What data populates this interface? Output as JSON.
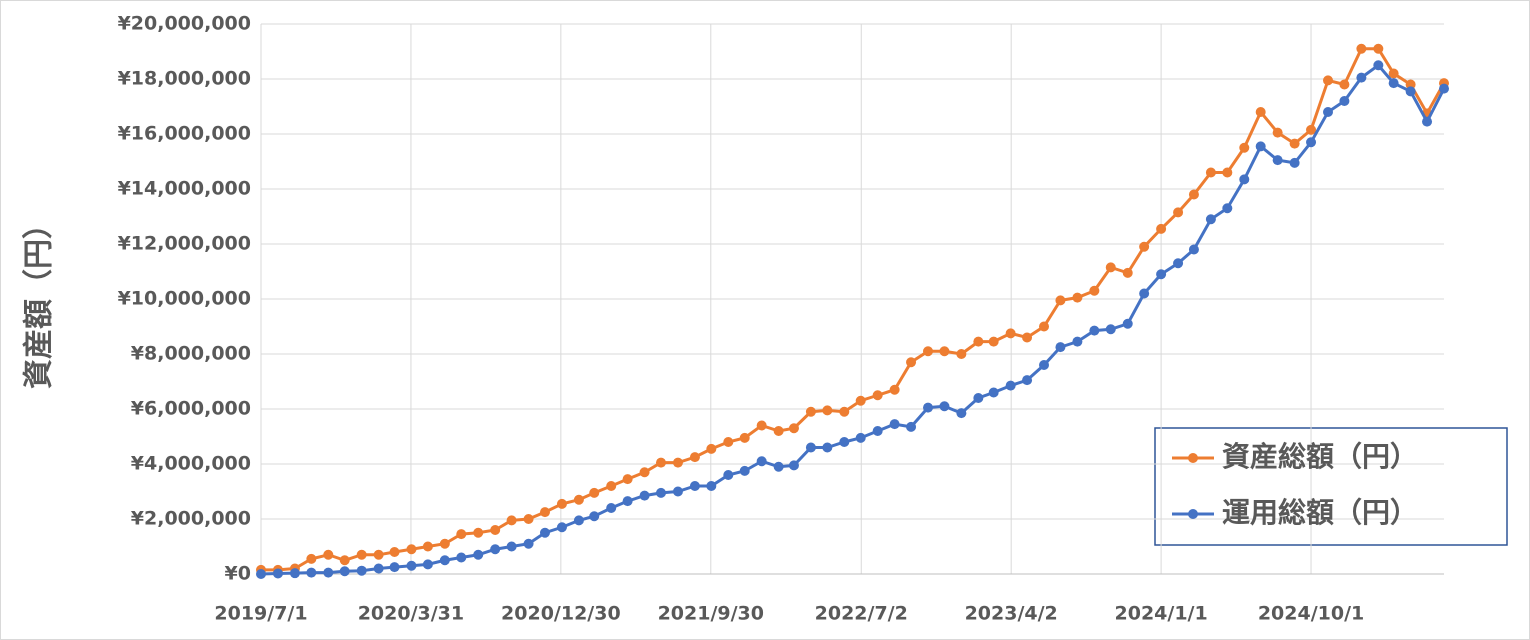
{
  "chart_data": {
    "type": "line",
    "y_label": "資産額（円）",
    "x": [
      "2019/7/1",
      "2019/8/1",
      "2019/9/1",
      "2019/10/1",
      "2019/11/1",
      "2019/12/1",
      "2020/1/1",
      "2020/2/1",
      "2020/3/1",
      "2020/4/1",
      "2020/5/1",
      "2020/6/1",
      "2020/7/1",
      "2020/8/1",
      "2020/9/1",
      "2020/10/1",
      "2020/11/1",
      "2020/12/1",
      "2021/1/1",
      "2021/2/1",
      "2021/3/1",
      "2021/4/1",
      "2021/5/1",
      "2021/6/1",
      "2021/7/1",
      "2021/8/1",
      "2021/9/1",
      "2021/10/1",
      "2021/11/1",
      "2021/12/1",
      "2022/1/1",
      "2022/2/1",
      "2022/3/1",
      "2022/4/1",
      "2022/5/1",
      "2022/6/1",
      "2022/7/1",
      "2022/8/1",
      "2022/9/1",
      "2022/10/1",
      "2022/11/1",
      "2022/12/1",
      "2023/1/1",
      "2023/2/1",
      "2023/3/1",
      "2023/4/1",
      "2023/5/1",
      "2023/6/1",
      "2023/7/1",
      "2023/8/1",
      "2023/9/1",
      "2023/10/1",
      "2023/11/1",
      "2023/12/1",
      "2024/1/1",
      "2024/2/1",
      "2024/3/1",
      "2024/4/1",
      "2024/5/1",
      "2024/6/1",
      "2024/7/1",
      "2024/8/1",
      "2024/9/1",
      "2024/10/1",
      "2024/11/1",
      "2024/12/1",
      "2025/1/1",
      "2025/2/1",
      "2025/3/1",
      "2025/4/1",
      "2025/5/1",
      "2025/6/1"
    ],
    "series": [
      {
        "name": "資産総額（円）",
        "color": "#ed7d31",
        "values": [
          150000,
          150000,
          200000,
          550000,
          700000,
          500000,
          700000,
          700000,
          800000,
          900000,
          1000000,
          1100000,
          1450000,
          1500000,
          1600000,
          1950000,
          2000000,
          2250000,
          2550000,
          2700000,
          2950000,
          3200000,
          3450000,
          3700000,
          4050000,
          4050000,
          4250000,
          4550000,
          4800000,
          4950000,
          5400000,
          5200000,
          5300000,
          5900000,
          5950000,
          5900000,
          6300000,
          6500000,
          6700000,
          7700000,
          8100000,
          8100000,
          8000000,
          8450000,
          8450000,
          8750000,
          8600000,
          9000000,
          9950000,
          10050000,
          10300000,
          11150000,
          10950000,
          11900000,
          12550000,
          13150000,
          13800000,
          14600000,
          14600000,
          15500000,
          16800000,
          16050000,
          15650000,
          16150000,
          17950000,
          17800000,
          19100000,
          19100000,
          18200000,
          17800000,
          16750000,
          17850000
        ]
      },
      {
        "name": "運用総額（円）",
        "color": "#4472c4",
        "values": [
          0,
          20000,
          30000,
          50000,
          50000,
          100000,
          120000,
          200000,
          250000,
          300000,
          350000,
          500000,
          600000,
          700000,
          900000,
          1000000,
          1100000,
          1500000,
          1700000,
          1950000,
          2100000,
          2400000,
          2650000,
          2850000,
          2950000,
          3000000,
          3200000,
          3200000,
          3600000,
          3750000,
          4100000,
          3900000,
          3950000,
          4600000,
          4600000,
          4800000,
          4950000,
          5200000,
          5450000,
          5350000,
          6050000,
          6100000,
          5850000,
          6400000,
          6600000,
          6850000,
          7050000,
          7600000,
          8250000,
          8450000,
          8850000,
          8900000,
          9100000,
          10200000,
          10900000,
          11300000,
          11800000,
          12900000,
          13300000,
          14350000,
          15550000,
          15050000,
          14950000,
          15700000,
          16800000,
          17200000,
          18050000,
          18500000,
          17850000,
          17550000,
          16450000,
          17650000
        ]
      }
    ],
    "xlim": [
      "2019/7/1",
      "2025/6/1"
    ],
    "xticks": [
      "2019/7/1",
      "2020/3/31",
      "2020/12/30",
      "2021/9/30",
      "2022/7/2",
      "2023/4/2",
      "2024/1/1",
      "2024/10/1"
    ],
    "ylim": [
      0,
      20000000
    ],
    "yticks": [
      {
        "value": 0,
        "label": "¥0"
      },
      {
        "value": 2000000,
        "label": "¥2,000,000"
      },
      {
        "value": 4000000,
        "label": "¥4,000,000"
      },
      {
        "value": 6000000,
        "label": "¥6,000,000"
      },
      {
        "value": 8000000,
        "label": "¥8,000,000"
      },
      {
        "value": 10000000,
        "label": "¥10,000,000"
      },
      {
        "value": 12000000,
        "label": "¥12,000,000"
      },
      {
        "value": 14000000,
        "label": "¥14,000,000"
      },
      {
        "value": 16000000,
        "label": "¥16,000,000"
      },
      {
        "value": 18000000,
        "label": "¥18,000,000"
      },
      {
        "value": 20000000,
        "label": "¥20,000,000"
      }
    ],
    "grid": true
  }
}
